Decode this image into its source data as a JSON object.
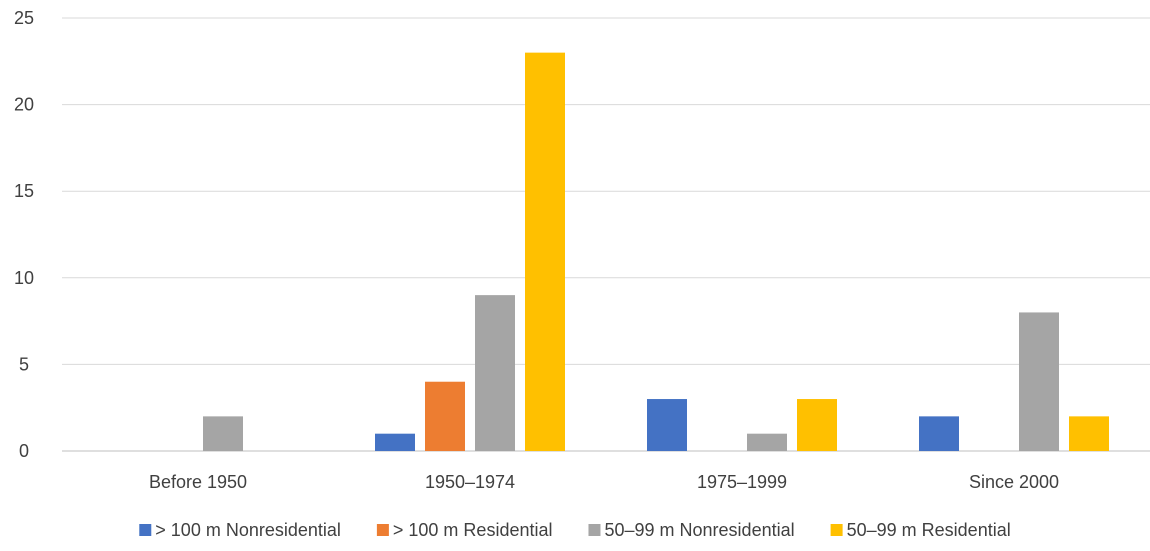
{
  "chart_data": {
    "type": "bar",
    "categories": [
      "Before 1950",
      "1950–1974",
      "1975–1999",
      "Since 2000"
    ],
    "series": [
      {
        "name": "> 100 m Nonresidential",
        "color": "#4472C4",
        "values": [
          0,
          1,
          3,
          2
        ]
      },
      {
        "name": "> 100 m Residential",
        "color": "#ED7D31",
        "values": [
          0,
          4,
          0,
          0
        ]
      },
      {
        "name": "50–99 m Nonresidential",
        "color": "#A5A5A5",
        "values": [
          2,
          9,
          1,
          8
        ]
      },
      {
        "name": "50–99 m Residential",
        "color": "#FFC000",
        "values": [
          0,
          23,
          3,
          2
        ]
      }
    ],
    "ylim": [
      0,
      25
    ],
    "yticks": [
      0,
      5,
      10,
      15,
      20,
      25
    ],
    "grid": true,
    "legend": "bottom"
  }
}
